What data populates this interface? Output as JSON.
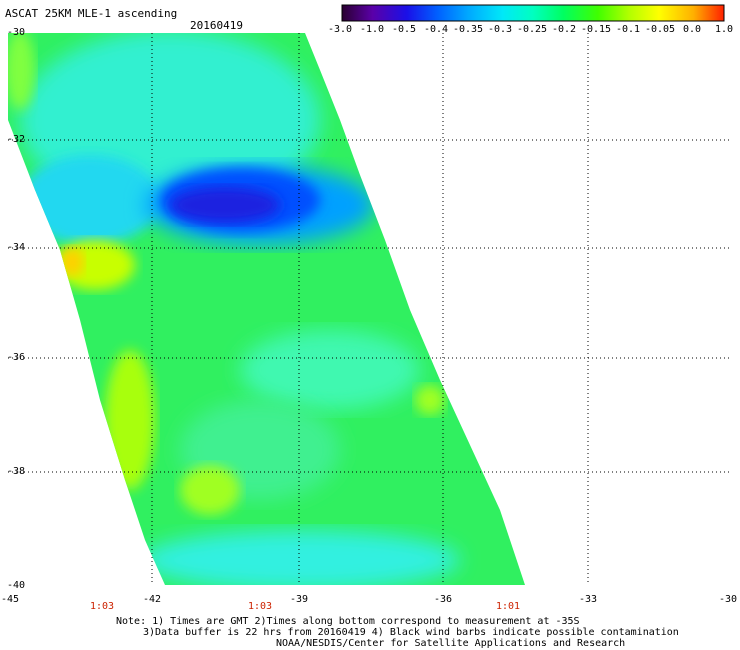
{
  "header": {
    "title": "ASCAT 25KM MLE-1 ascending",
    "date": "20160419"
  },
  "colorbar": {
    "tick_labels": [
      "-3.0",
      "-1.0",
      "-0.5",
      "-0.4",
      "-0.35",
      "-0.3",
      "-0.25",
      "-0.2",
      "-0.15",
      "-0.1",
      "-0.05",
      "0.0",
      "1.0"
    ],
    "colors": [
      "#2a0030",
      "#5a00a8",
      "#1a10e8",
      "#0060ff",
      "#00a8ff",
      "#00e8f8",
      "#00ffc0",
      "#00ff60",
      "#40ff00",
      "#b0ff00",
      "#ffff00",
      "#ffb000",
      "#ff5000",
      "#ff0000"
    ]
  },
  "map": {
    "lat_labels": [
      "-30",
      "-32",
      "-34",
      "-36",
      "-38",
      "-40"
    ],
    "lon_labels": [
      "-45",
      "-42",
      "-39",
      "-36",
      "-33",
      "-30"
    ],
    "time_labels": [
      "1:03",
      "1:03",
      "1:01"
    ]
  },
  "notes": {
    "line1": "Note: 1) Times are GMT 2)Times along bottom correspond to measurement at -35S",
    "line2": "3)Data buffer is 22 hrs from 20160419 4) Black wind barbs indicate possible contamination",
    "line3": "NOAA/NESDIS/Center for Satellite Applications and Research"
  }
}
